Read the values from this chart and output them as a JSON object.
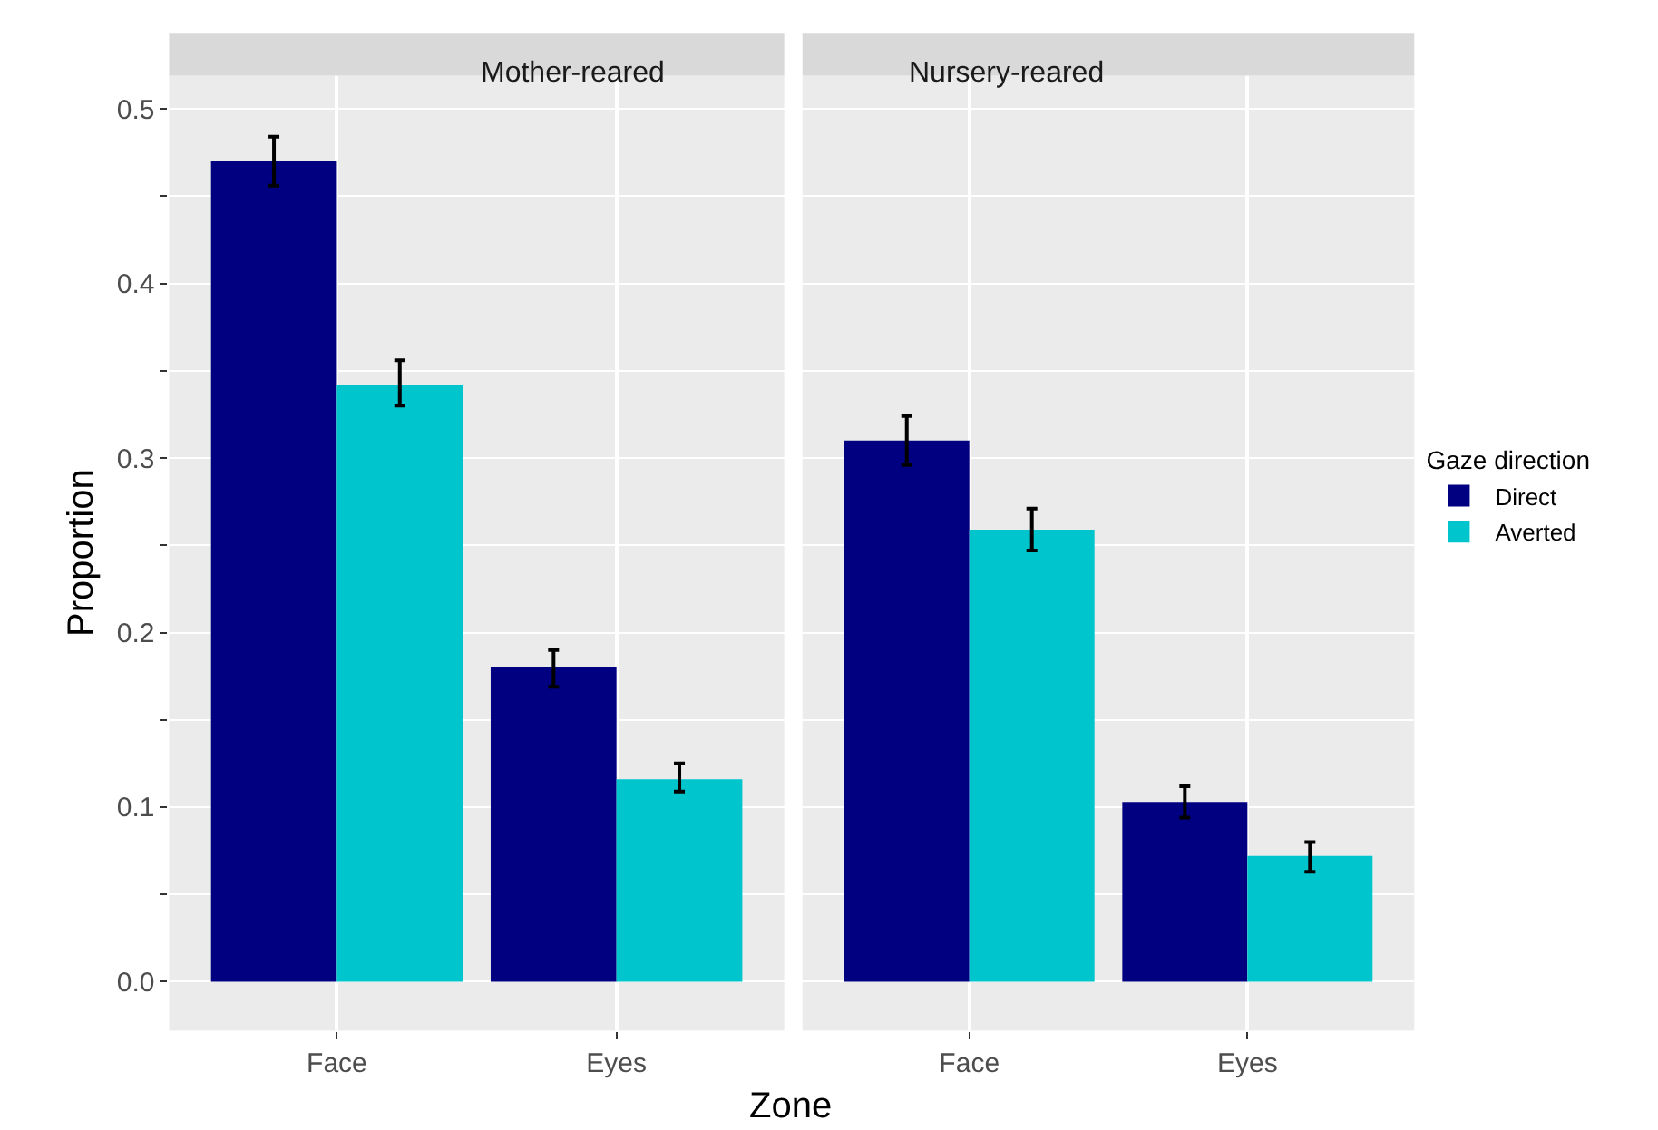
{
  "chart_data": [
    {
      "type": "bar",
      "title": "Mother-reared",
      "xlabel": "Zone",
      "ylabel": "Proportion",
      "categories": [
        "Face",
        "Eyes"
      ],
      "series": [
        {
          "color": "#000080",
          "values": [
            0.47,
            0.18
          ],
          "errors": [
            [
              0.456,
              0.484
            ],
            [
              0.169,
              0.19
            ]
          ]
        },
        {
          "color": "#00c5cd",
          "values": [
            0.342,
            0.116
          ],
          "errors": [
            [
              0.33,
              0.356
            ],
            [
              0.109,
              0.125
            ]
          ]
        }
      ],
      "ylim": [
        -0.028,
        0.519
      ],
      "yticks": [
        {
          "value": 0,
          "label": "0.0"
        },
        0.1,
        0.2,
        0.3,
        0.4,
        0.5,
        {
          "value": 0.05,
          "label": null
        },
        {
          "value": 0.15,
          "label": null
        },
        {
          "value": 0.25,
          "label": null
        },
        {
          "value": 0.35,
          "label": null
        },
        {
          "value": 0.45,
          "label": null
        }
      ],
      "grid": true
    },
    {
      "type": "bar",
      "title": "Nursery-reared",
      "categories": [
        "Face",
        "Eyes"
      ],
      "legend_title": "Gaze direction",
      "series": [
        {
          "name": "Direct",
          "color": "#000080",
          "values": [
            0.31,
            0.103
          ],
          "errors": [
            [
              0.296,
              0.324
            ],
            [
              0.094,
              0.112
            ]
          ]
        },
        {
          "name": "Averted",
          "color": "#00c5cd",
          "values": [
            0.259,
            0.072
          ],
          "errors": [
            [
              0.247,
              0.271
            ],
            [
              0.063,
              0.08
            ]
          ]
        }
      ],
      "ylim": [
        -0.028,
        0.519
      ],
      "yticks": [
        {
          "value": 0,
          "label": null
        },
        {
          "value": 0.05,
          "label": null
        },
        {
          "value": 0.1,
          "label": null
        },
        {
          "value": 0.15,
          "label": null
        },
        {
          "value": 0.2,
          "label": null
        },
        {
          "value": 0.25,
          "label": null
        },
        {
          "value": 0.3,
          "label": null
        },
        {
          "value": 0.35,
          "label": null
        },
        {
          "value": 0.4,
          "label": null
        },
        {
          "value": 0.45,
          "label": null
        },
        {
          "value": 0.5,
          "label": null
        }
      ],
      "grid": true,
      "legend": "right",
      "tick_labels": "x"
    }
  ]
}
